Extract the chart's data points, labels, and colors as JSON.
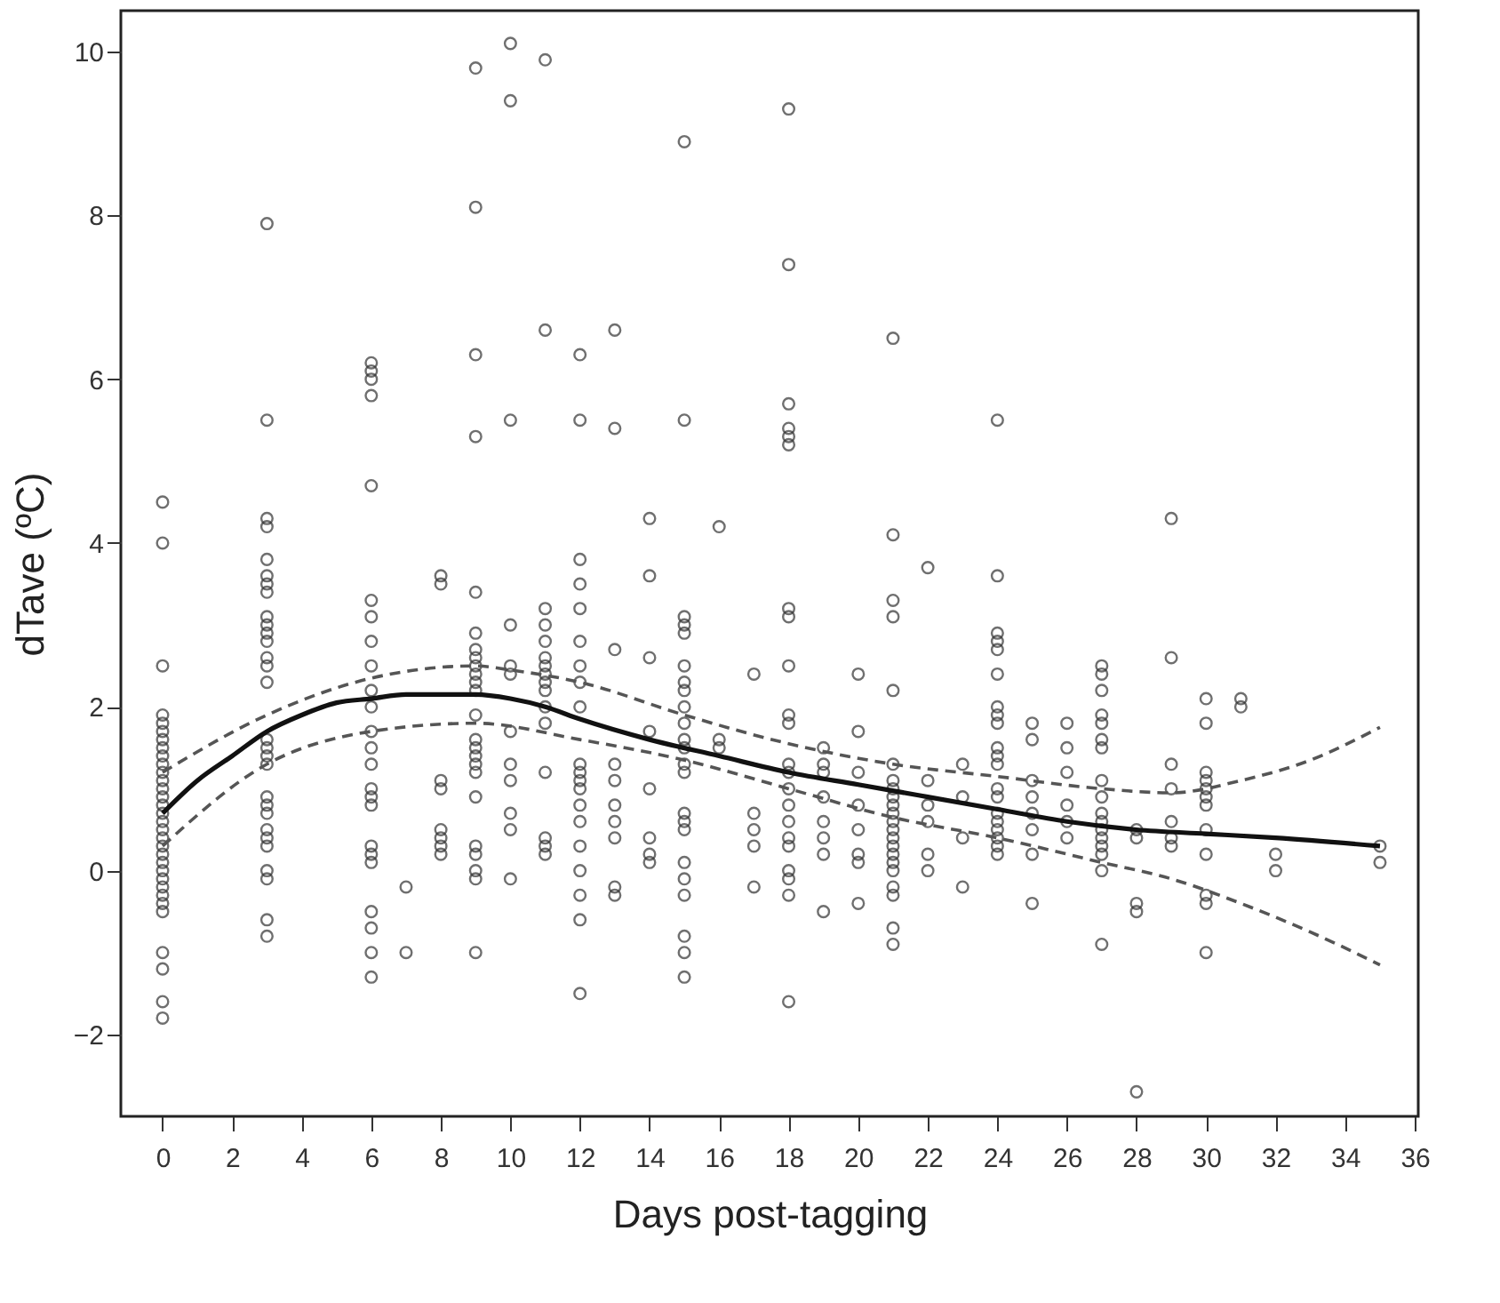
{
  "chart_data": {
    "type": "scatter",
    "xlabel": "Days post-tagging",
    "ylabel": "dTave (ºC)",
    "marker": "circle",
    "grid": false,
    "xlim": [
      -1.2,
      36.1
    ],
    "xticks": [
      0,
      2,
      4,
      6,
      8,
      10,
      12,
      14,
      16,
      18,
      20,
      22,
      24,
      26,
      28,
      30,
      32,
      34,
      36
    ],
    "ylim": [
      -3.0,
      10.5
    ],
    "yticks": [
      -2,
      0,
      2,
      4,
      6,
      8,
      10
    ],
    "series": [
      {
        "color": "#333333",
        "x": [
          0,
          0,
          0,
          0,
          0,
          0,
          0,
          0,
          0,
          0,
          0,
          0,
          0,
          0,
          0,
          0,
          0,
          0,
          0,
          0,
          0,
          0,
          0,
          0,
          0,
          0,
          0,
          0,
          0,
          0,
          0,
          0
        ],
        "values": [
          4.5,
          4.0,
          2.5,
          1.9,
          1.8,
          1.7,
          1.6,
          1.5,
          1.4,
          1.3,
          1.2,
          1.1,
          1.0,
          0.9,
          0.8,
          0.7,
          0.6,
          0.5,
          0.4,
          0.3,
          0.2,
          0.1,
          0.0,
          -0.1,
          -0.2,
          -0.3,
          -0.4,
          -0.5,
          -1.0,
          -1.2,
          -1.6,
          -1.8
        ]
      },
      {
        "color": "#333333",
        "x": [
          3,
          3,
          3,
          3,
          3,
          3,
          3,
          3,
          3,
          3,
          3,
          3,
          3,
          3,
          3,
          3,
          3,
          3,
          3,
          3,
          3,
          3,
          3,
          3,
          3,
          3,
          3,
          3,
          3
        ],
        "values": [
          7.9,
          5.5,
          4.3,
          4.2,
          3.8,
          3.6,
          3.5,
          3.4,
          3.1,
          3.0,
          2.9,
          2.8,
          2.6,
          2.5,
          2.3,
          1.6,
          1.5,
          1.4,
          1.3,
          0.9,
          0.8,
          0.7,
          0.5,
          0.4,
          0.3,
          0.0,
          -0.1,
          -0.6,
          -0.8
        ]
      },
      {
        "color": "#333333",
        "x": [
          6,
          6,
          6,
          6,
          6,
          6,
          6,
          6,
          6,
          6,
          6,
          6,
          6,
          6,
          6,
          6,
          6,
          6,
          6,
          6,
          6,
          6,
          6,
          6
        ],
        "values": [
          6.2,
          6.1,
          6.0,
          5.8,
          4.7,
          3.3,
          3.1,
          2.8,
          2.5,
          2.2,
          2.0,
          1.7,
          1.5,
          1.3,
          1.0,
          0.9,
          0.8,
          0.3,
          0.2,
          0.1,
          -0.5,
          -0.7,
          -1.0,
          -1.3
        ]
      },
      {
        "color": "#333333",
        "x": [
          7,
          7
        ],
        "values": [
          -0.2,
          -1.0
        ]
      },
      {
        "color": "#333333",
        "x": [
          8,
          8,
          8,
          8,
          8,
          8,
          8,
          8
        ],
        "values": [
          3.6,
          3.5,
          1.1,
          1.0,
          0.5,
          0.4,
          0.3,
          0.2
        ]
      },
      {
        "color": "#333333",
        "x": [
          9,
          9,
          9,
          9,
          9,
          9,
          9,
          9,
          9,
          9,
          9,
          9,
          9,
          9,
          9,
          9,
          9,
          9,
          9,
          9,
          9,
          9,
          9,
          9
        ],
        "values": [
          9.8,
          8.1,
          6.3,
          5.3,
          3.4,
          2.9,
          2.7,
          2.6,
          2.5,
          2.4,
          2.3,
          2.2,
          1.9,
          1.6,
          1.5,
          1.4,
          1.3,
          1.2,
          0.9,
          0.3,
          0.2,
          0.0,
          -0.1,
          -1.0
        ]
      },
      {
        "color": "#333333",
        "x": [
          10,
          10,
          10,
          10,
          10,
          10,
          10,
          10,
          10,
          10,
          10,
          10
        ],
        "values": [
          10.1,
          9.4,
          5.5,
          3.0,
          2.5,
          2.4,
          1.7,
          1.3,
          1.1,
          0.7,
          0.5,
          -0.1
        ]
      },
      {
        "color": "#333333",
        "x": [
          11,
          11,
          11,
          11,
          11,
          11,
          11,
          11,
          11,
          11,
          11,
          11,
          11,
          11,
          11,
          11
        ],
        "values": [
          9.9,
          6.6,
          3.2,
          3.0,
          2.8,
          2.6,
          2.5,
          2.4,
          2.3,
          2.2,
          2.0,
          1.8,
          1.2,
          0.4,
          0.3,
          0.2
        ]
      },
      {
        "color": "#333333",
        "x": [
          12,
          12,
          12,
          12,
          12,
          12,
          12,
          12,
          12,
          12,
          12,
          12,
          12,
          12,
          12,
          12,
          12,
          12,
          12,
          12
        ],
        "values": [
          6.3,
          5.5,
          3.8,
          3.5,
          3.2,
          2.8,
          2.5,
          2.3,
          2.0,
          1.3,
          1.2,
          1.1,
          1.0,
          0.8,
          0.6,
          0.3,
          0.0,
          -0.3,
          -0.6,
          -1.5
        ]
      },
      {
        "color": "#333333",
        "x": [
          13,
          13,
          13,
          13,
          13,
          13,
          13,
          13,
          13,
          13
        ],
        "values": [
          6.6,
          5.4,
          2.7,
          1.3,
          1.1,
          0.8,
          0.6,
          0.4,
          -0.2,
          -0.3
        ]
      },
      {
        "color": "#333333",
        "x": [
          14,
          14,
          14,
          14,
          14,
          14,
          14,
          14
        ],
        "values": [
          4.3,
          3.6,
          2.6,
          1.7,
          1.0,
          0.4,
          0.2,
          0.1
        ]
      },
      {
        "color": "#333333",
        "x": [
          15,
          15,
          15,
          15,
          15,
          15,
          15,
          15,
          15,
          15,
          15,
          15,
          15,
          15,
          15,
          15,
          15,
          15,
          15,
          15,
          15,
          15,
          15
        ],
        "values": [
          8.9,
          5.5,
          3.1,
          3.0,
          2.9,
          2.5,
          2.3,
          2.2,
          2.0,
          1.8,
          1.6,
          1.5,
          1.3,
          1.2,
          0.7,
          0.6,
          0.5,
          0.1,
          -0.1,
          -0.3,
          -0.8,
          -1.0,
          -1.3
        ]
      },
      {
        "color": "#333333",
        "x": [
          16,
          16,
          16
        ],
        "values": [
          4.2,
          1.6,
          1.5
        ]
      },
      {
        "color": "#333333",
        "x": [
          17,
          17,
          17,
          17,
          17
        ],
        "values": [
          2.4,
          0.7,
          0.5,
          0.3,
          -0.2
        ]
      },
      {
        "color": "#333333",
        "x": [
          18,
          18,
          18,
          18,
          18,
          18,
          18,
          18,
          18,
          18,
          18,
          18,
          18,
          18,
          18,
          18,
          18,
          18,
          18,
          18,
          18,
          18
        ],
        "values": [
          9.3,
          7.4,
          5.7,
          5.4,
          5.3,
          5.2,
          3.2,
          3.1,
          2.5,
          1.9,
          1.8,
          1.3,
          1.2,
          1.0,
          0.8,
          0.6,
          0.4,
          0.3,
          0.0,
          -0.1,
          -0.3,
          -1.6
        ]
      },
      {
        "color": "#333333",
        "x": [
          19,
          19,
          19,
          19,
          19,
          19,
          19,
          19
        ],
        "values": [
          1.5,
          1.3,
          1.2,
          0.9,
          0.6,
          0.4,
          0.2,
          -0.5
        ]
      },
      {
        "color": "#333333",
        "x": [
          20,
          20,
          20,
          20,
          20,
          20,
          20,
          20
        ],
        "values": [
          2.4,
          1.7,
          1.2,
          0.8,
          0.5,
          0.2,
          0.1,
          -0.4
        ]
      },
      {
        "color": "#333333",
        "x": [
          21,
          21,
          21,
          21,
          21,
          21,
          21,
          21,
          21,
          21,
          21,
          21,
          21,
          21,
          21,
          21,
          21,
          21,
          21,
          21,
          21,
          21
        ],
        "values": [
          6.5,
          4.1,
          3.3,
          3.1,
          2.2,
          1.3,
          1.1,
          1.0,
          0.9,
          0.8,
          0.7,
          0.6,
          0.5,
          0.4,
          0.3,
          0.2,
          0.1,
          0.0,
          -0.2,
          -0.3,
          -0.7,
          -0.9
        ]
      },
      {
        "color": "#333333",
        "x": [
          22,
          22,
          22,
          22,
          22,
          22
        ],
        "values": [
          3.7,
          1.1,
          0.8,
          0.6,
          0.2,
          0.0
        ]
      },
      {
        "color": "#333333",
        "x": [
          23,
          23,
          23,
          23
        ],
        "values": [
          1.3,
          0.9,
          0.4,
          -0.2
        ]
      },
      {
        "color": "#333333",
        "x": [
          24,
          24,
          24,
          24,
          24,
          24,
          24,
          24,
          24,
          24,
          24,
          24,
          24,
          24,
          24,
          24,
          24,
          24,
          24,
          24
        ],
        "values": [
          5.5,
          3.6,
          2.9,
          2.8,
          2.7,
          2.4,
          2.0,
          1.9,
          1.8,
          1.5,
          1.4,
          1.3,
          1.0,
          0.9,
          0.7,
          0.6,
          0.5,
          0.4,
          0.3,
          0.2
        ]
      },
      {
        "color": "#333333",
        "x": [
          25,
          25,
          25,
          25,
          25,
          25,
          25,
          25
        ],
        "values": [
          1.8,
          1.6,
          1.1,
          0.9,
          0.7,
          0.5,
          0.2,
          -0.4
        ]
      },
      {
        "color": "#333333",
        "x": [
          26,
          26,
          26,
          26,
          26,
          26
        ],
        "values": [
          1.8,
          1.5,
          1.2,
          0.8,
          0.6,
          0.4
        ]
      },
      {
        "color": "#333333",
        "x": [
          27,
          27,
          27,
          27,
          27,
          27,
          27,
          27,
          27,
          27,
          27,
          27,
          27,
          27,
          27,
          27,
          27
        ],
        "values": [
          2.5,
          2.4,
          2.2,
          1.9,
          1.8,
          1.6,
          1.5,
          1.1,
          0.9,
          0.7,
          0.6,
          0.5,
          0.4,
          0.3,
          0.2,
          0.0,
          -0.9
        ]
      },
      {
        "color": "#333333",
        "x": [
          28,
          28,
          28,
          28,
          28
        ],
        "values": [
          0.5,
          0.4,
          -0.4,
          -0.5,
          -2.7
        ]
      },
      {
        "color": "#333333",
        "x": [
          29,
          29,
          29,
          29,
          29,
          29,
          29
        ],
        "values": [
          4.3,
          2.6,
          1.3,
          1.0,
          0.6,
          0.4,
          0.3
        ]
      },
      {
        "color": "#333333",
        "x": [
          30,
          30,
          30,
          30,
          30,
          30,
          30,
          30,
          30,
          30,
          30,
          30
        ],
        "values": [
          2.1,
          1.8,
          1.2,
          1.1,
          1.0,
          0.9,
          0.8,
          0.5,
          0.2,
          -0.3,
          -0.4,
          -1.0
        ]
      },
      {
        "color": "#333333",
        "x": [
          31,
          31
        ],
        "values": [
          2.1,
          2.0
        ]
      },
      {
        "color": "#333333",
        "x": [
          32,
          32
        ],
        "values": [
          0.2,
          0.0
        ]
      },
      {
        "color": "#333333",
        "x": [
          35,
          35
        ],
        "values": [
          0.3,
          0.1
        ]
      },
      {
        "type": "line",
        "color": "#111111",
        "line_style": "solid",
        "marker": "none",
        "x": [
          0,
          1,
          2,
          3,
          4,
          5,
          6,
          7,
          8,
          9,
          10,
          11,
          12,
          14,
          16,
          18,
          20,
          22,
          24,
          26,
          28,
          30,
          32,
          35
        ],
        "values": [
          0.7,
          1.1,
          1.4,
          1.7,
          1.9,
          2.05,
          2.1,
          2.15,
          2.15,
          2.15,
          2.1,
          2.0,
          1.85,
          1.6,
          1.4,
          1.2,
          1.05,
          0.9,
          0.75,
          0.6,
          0.5,
          0.45,
          0.4,
          0.3
        ]
      },
      {
        "type": "line",
        "color": "#555555",
        "line_style": "dashed",
        "marker": "none",
        "x": [
          0,
          3,
          6,
          9,
          10,
          12,
          15,
          18,
          21,
          24,
          27,
          29,
          31,
          33,
          35
        ],
        "values": [
          1.2,
          1.9,
          2.35,
          2.5,
          2.45,
          2.3,
          1.9,
          1.55,
          1.3,
          1.15,
          1.0,
          0.95,
          1.1,
          1.35,
          1.75
        ]
      },
      {
        "type": "line",
        "color": "#555555",
        "line_style": "dashed",
        "marker": "none",
        "x": [
          0,
          3,
          6,
          9,
          12,
          15,
          18,
          21,
          24,
          27,
          29,
          31,
          33,
          35
        ],
        "values": [
          0.3,
          1.3,
          1.7,
          1.8,
          1.6,
          1.35,
          1.0,
          0.65,
          0.4,
          0.1,
          -0.1,
          -0.4,
          -0.75,
          -1.15
        ]
      }
    ]
  }
}
